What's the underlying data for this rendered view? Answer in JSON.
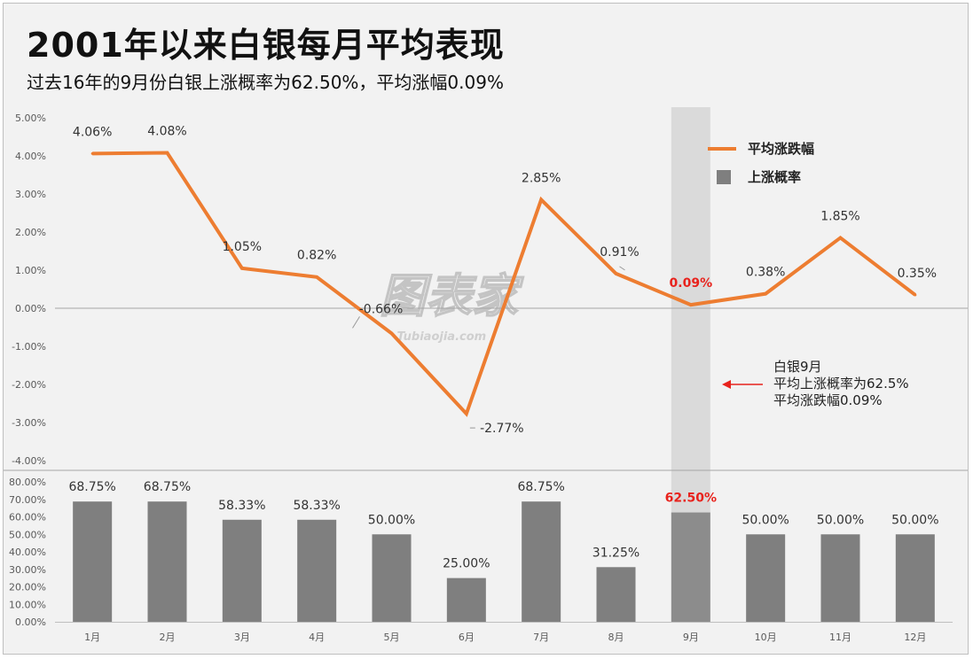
{
  "title": "2001年以来白银每月平均表现",
  "subtitle": "过去16年的9月份白银上涨概率为62.50%，平均涨幅0.09%",
  "colors": {
    "line": "#ed7d31",
    "bar": "#7f7f7f",
    "highlight_text": "#e8221c",
    "highlight_band": "#dadada",
    "background": "#f2f2f2"
  },
  "legend": {
    "line_label": "平均涨跌幅",
    "bar_label": "上涨概率"
  },
  "annotation": {
    "lines": [
      "白银9月",
      "平均上涨概率为62.5%",
      "平均涨跌幅0.09%"
    ]
  },
  "watermark": {
    "text": "图表家",
    "sub": "Tubiaojia.com"
  },
  "highlight_month_index": 8,
  "chart_data": [
    {
      "type": "line",
      "categories": [
        "1月",
        "2月",
        "3月",
        "4月",
        "5月",
        "6月",
        "7月",
        "8月",
        "9月",
        "10月",
        "11月",
        "12月"
      ],
      "series": [
        {
          "name": "平均涨跌幅",
          "values": [
            4.06,
            4.08,
            1.05,
            0.82,
            -0.66,
            -2.77,
            2.85,
            0.91,
            0.09,
            0.38,
            1.85,
            0.35
          ]
        }
      ],
      "data_labels": [
        "4.06%",
        "4.08%",
        "1.05%",
        "0.82%",
        "-0.66%",
        "-2.77%",
        "2.85%",
        "0.91%",
        "0.09%",
        "0.38%",
        "1.85%",
        "0.35%"
      ],
      "ylim": [
        -4,
        5
      ],
      "yticks": [
        "5.00%",
        "4.00%",
        "3.00%",
        "2.00%",
        "1.00%",
        "0.00%",
        "-1.00%",
        "-2.00%",
        "-3.00%",
        "-4.00%"
      ],
      "grid": false,
      "legend_position": "top-right"
    },
    {
      "type": "bar",
      "categories": [
        "1月",
        "2月",
        "3月",
        "4月",
        "5月",
        "6月",
        "7月",
        "8月",
        "9月",
        "10月",
        "11月",
        "12月"
      ],
      "series": [
        {
          "name": "上涨概率",
          "values": [
            68.75,
            68.75,
            58.33,
            58.33,
            50.0,
            25.0,
            68.75,
            31.25,
            62.5,
            50.0,
            50.0,
            50.0
          ]
        }
      ],
      "data_labels": [
        "68.75%",
        "68.75%",
        "58.33%",
        "58.33%",
        "50.00%",
        "25.00%",
        "68.75%",
        "31.25%",
        "62.50%",
        "50.00%",
        "50.00%",
        "50.00%"
      ],
      "ylim": [
        0,
        80
      ],
      "yticks": [
        "80.00%",
        "70.00%",
        "60.00%",
        "50.00%",
        "40.00%",
        "30.00%",
        "20.00%",
        "10.00%",
        "0.00%"
      ],
      "grid": false
    }
  ]
}
